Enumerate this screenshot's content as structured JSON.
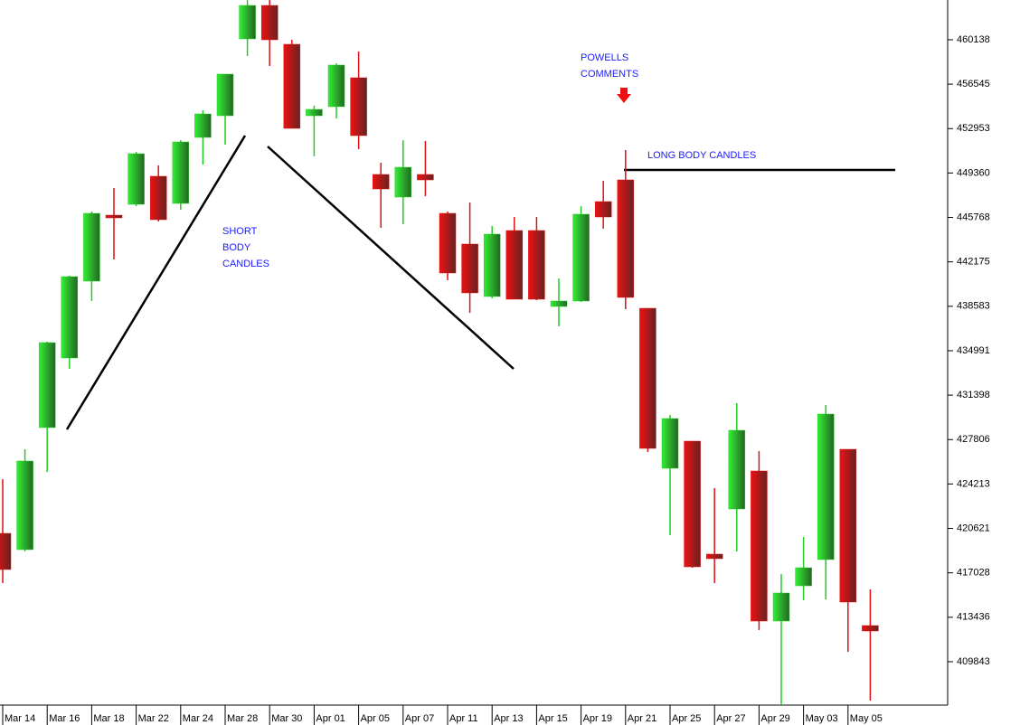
{
  "chart_data": {
    "type": "candlestick",
    "categories": [
      "Mar 14",
      null,
      "Mar 16",
      null,
      "Mar 18",
      null,
      "Mar 22",
      null,
      "Mar 24",
      null,
      "Mar 28",
      null,
      "Mar 30",
      null,
      "Apr 01",
      null,
      "Apr 05",
      null,
      "Apr 07",
      null,
      "Apr 11",
      null,
      "Apr 13",
      null,
      "Apr 15",
      null,
      "Apr 19",
      null,
      "Apr 21",
      null,
      "Apr 25",
      null,
      "Apr 27",
      null,
      "Apr 29",
      null,
      "May 03",
      null,
      "May 05",
      null
    ],
    "open": [
      420221,
      418905,
      428774,
      434402,
      440616,
      445952,
      446829,
      449095,
      446902,
      452239,
      453993,
      460207,
      462911,
      459768,
      453993,
      454724,
      457063,
      449242,
      447414,
      449242,
      446098,
      443613,
      439373,
      444709,
      444709,
      438569,
      439008,
      447049,
      448803,
      438423,
      425484,
      427677,
      418540,
      422195,
      425265,
      413130,
      415981,
      418101,
      427019,
      412765
    ],
    "high": [
      424607,
      427019,
      435718,
      441054,
      446245,
      448145,
      451069,
      449973,
      452019,
      454432,
      457356,
      463350,
      463350,
      460134,
      454797,
      458233,
      459183,
      450192,
      452019,
      451946,
      446245,
      446976,
      445075,
      445806,
      445806,
      440835,
      446683,
      448730,
      451215,
      438423,
      429797,
      427677,
      423876,
      430747,
      426873,
      416931,
      419929,
      430601,
      427019,
      415689
    ],
    "low": [
      416200,
      418759,
      425192,
      433525,
      439008,
      442370,
      446683,
      445440,
      446391,
      450046,
      451654,
      458818,
      458014,
      452970,
      450704,
      453774,
      451288,
      444929,
      445221,
      447487,
      440689,
      438057,
      439227,
      439154,
      439081,
      436961,
      438935,
      444856,
      438350,
      426800,
      420075,
      417443,
      416200,
      418759,
      412399,
      406332,
      414812,
      414885,
      410645,
      406697
    ],
    "close": [
      417297,
      426069,
      435645,
      440981,
      446098,
      445806,
      450923,
      445587,
      451873,
      454139,
      457356,
      462911,
      460134,
      452970,
      454505,
      458087,
      452385,
      448072,
      449826,
      448803,
      441274,
      439666,
      444417,
      439154,
      439154,
      439008,
      446025,
      445806,
      439300,
      427092,
      429505,
      417516,
      418174,
      428554,
      413130,
      415396,
      417443,
      429870,
      414665,
      412326
    ],
    "up_color": "#22cc22",
    "down_color": "#dd1111",
    "ylim": [
      406332,
      463350
    ],
    "yticks": [
      460138,
      456545,
      452953,
      449360,
      445768,
      442175,
      438583,
      434991,
      431398,
      427806,
      424213,
      420621,
      417028,
      413436,
      409843
    ],
    "annotations": [
      {
        "lines": [
          "SHORT",
          "BODY",
          "CANDLES"
        ],
        "color": "#1a1aff"
      },
      {
        "lines": [
          "POWELLS",
          "COMMENTS"
        ],
        "color": "#1a1aff"
      },
      {
        "lines": [
          "LONG BODY CANDLES"
        ],
        "color": "#1a1aff"
      }
    ]
  }
}
